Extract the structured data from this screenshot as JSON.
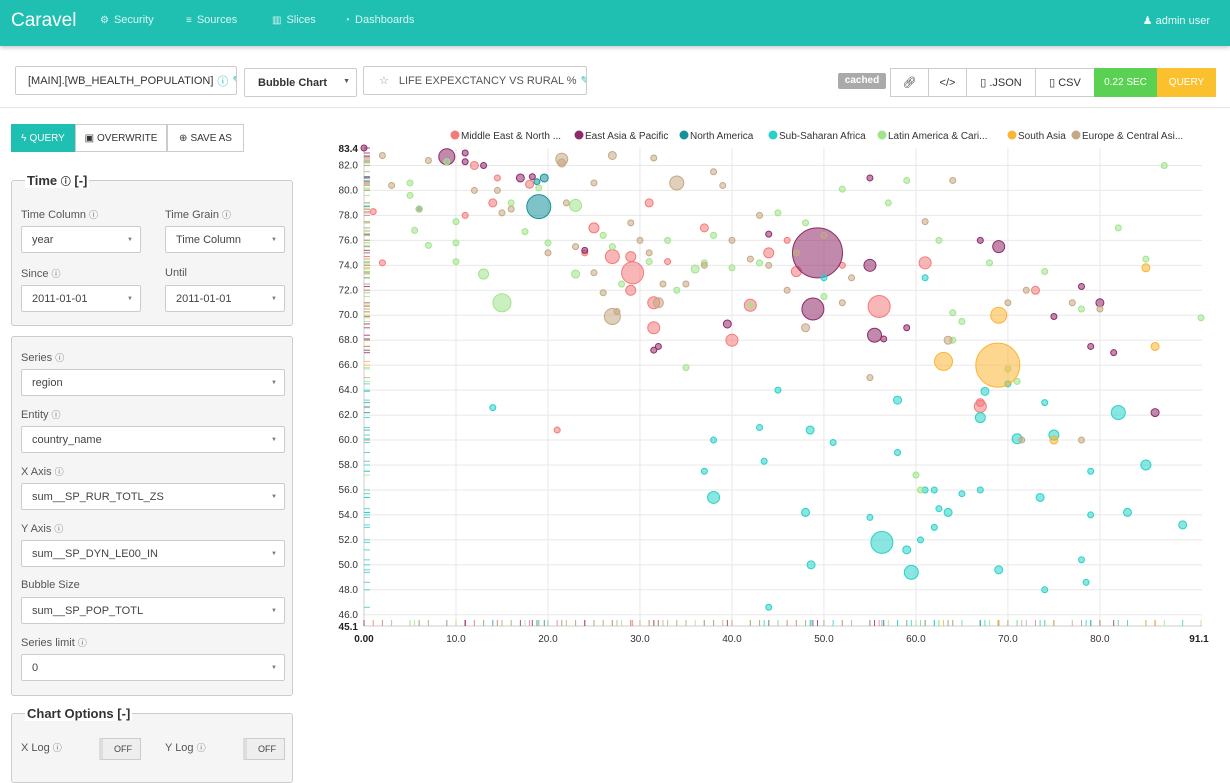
{
  "navbar": {
    "brand": "Caravel",
    "items": [
      {
        "label": "Security",
        "icon": "cogs-icon"
      },
      {
        "label": "Sources",
        "icon": "database-icon"
      },
      {
        "label": "Slices",
        "icon": "bar-chart-icon"
      },
      {
        "label": "Dashboards",
        "icon": "dashboard-icon"
      }
    ],
    "user": "admin user"
  },
  "toolbar": {
    "datasource": "[MAIN].[WB_HEALTH_POPULATION]",
    "viz_type": "Bubble Chart",
    "slice_title": "LIFE EXPEXCTANCY VS RURAL %",
    "cached": "cached",
    "json_label": ".JSON",
    "csv_label": "CSV",
    "timer": "0.22 SEC",
    "query_label": "QUERY"
  },
  "sidebar": {
    "query_label": "QUERY",
    "overwrite_label": "OVERWRITE",
    "saveas_label": "SAVE AS",
    "time_panel": {
      "title": "Time",
      "collapse": "[-]",
      "time_column_label": "Time Column",
      "time_column_value": "year",
      "time_grain_label": "Time Grain",
      "time_grain_value": "Time Column",
      "since_label": "Since",
      "since_value": "2011-01-01",
      "until_label": "Until",
      "until_value": "2011-01-01"
    },
    "fields": [
      {
        "label": "Series",
        "value": "region"
      },
      {
        "label": "Entity",
        "value": "country_name"
      },
      {
        "label": "X Axis",
        "value": "sum__SP_RUR_TOTL_ZS"
      },
      {
        "label": "Y Axis",
        "value": "sum__SP_DYN_LE00_IN"
      },
      {
        "label": "Bubble Size",
        "value": "sum__SP_POP_TOTL"
      },
      {
        "label": "Series limit",
        "value": "0"
      }
    ],
    "chart_options": {
      "title": "Chart Options",
      "collapse": "[-]",
      "xlog_label": "X Log",
      "xlog_value": "OFF",
      "ylog_label": "Y Log",
      "ylog_value": "OFF"
    }
  },
  "chart_data": {
    "type": "scatter",
    "x_min_label": "0.00",
    "x_max_label": "91.1",
    "y_min_label": "45.1",
    "y_max_label": "83.4",
    "xlim": [
      0,
      91.1
    ],
    "ylim": [
      45.1,
      83.4
    ],
    "x_ticks": [
      "10.0",
      "20.0",
      "30.0",
      "40.0",
      "50.0",
      "60.0",
      "70.0",
      "80.0"
    ],
    "y_ticks": [
      "46.0",
      "48.0",
      "50.0",
      "52.0",
      "54.0",
      "56.0",
      "58.0",
      "60.0",
      "62.0",
      "64.0",
      "66.0",
      "68.0",
      "70.0",
      "72.0",
      "74.0",
      "76.0",
      "78.0",
      "80.0",
      "82.0"
    ],
    "grid": true,
    "legend_position": "top",
    "series": [
      {
        "name": "Middle East & North ...",
        "color": "#f47a7a",
        "points": [
          [
            18,
            80.5
          ],
          [
            14,
            79
          ],
          [
            11,
            78
          ],
          [
            1,
            78.3
          ],
          [
            2,
            74.2
          ],
          [
            12,
            82
          ],
          [
            24,
            75
          ],
          [
            25,
            77
          ],
          [
            27,
            74.7
          ],
          [
            29,
            72
          ],
          [
            29,
            74.7
          ],
          [
            31.5,
            71
          ],
          [
            31.5,
            69
          ],
          [
            37,
            77
          ],
          [
            40,
            68
          ],
          [
            42,
            70.8
          ],
          [
            44,
            75
          ],
          [
            47,
            73.5
          ],
          [
            46,
            76
          ],
          [
            52,
            74
          ],
          [
            56,
            70.7
          ],
          [
            61,
            74.2
          ],
          [
            67,
            63
          ],
          [
            67,
            62.7
          ],
          [
            73,
            72
          ],
          [
            14.5,
            81
          ],
          [
            21,
            60.8
          ],
          [
            31,
            79
          ],
          [
            33,
            74.3
          ],
          [
            29.2,
            73.4
          ]
        ],
        "sizes": [
          4,
          4,
          3,
          3,
          3,
          4,
          3,
          5,
          7,
          5,
          5,
          6,
          6,
          4,
          6,
          6,
          5,
          5,
          3,
          3,
          11,
          6,
          4,
          6,
          4,
          3,
          3,
          4,
          3,
          11
        ]
      },
      {
        "name": "East Asia & Pacific",
        "color": "#8e2a68",
        "points": [
          [
            0,
            83.4
          ],
          [
            9,
            82.7
          ],
          [
            11,
            83
          ],
          [
            13,
            82
          ],
          [
            17,
            81
          ],
          [
            18.3,
            81.1
          ],
          [
            11,
            82.3
          ],
          [
            24,
            75.2
          ],
          [
            31.5,
            67.2
          ],
          [
            32,
            67.5
          ],
          [
            39.5,
            69.3
          ],
          [
            49.3,
            75
          ],
          [
            48.8,
            70.5
          ],
          [
            55,
            74
          ],
          [
            55.5,
            68.4
          ],
          [
            69,
            75.5
          ],
          [
            78,
            72.3
          ],
          [
            80,
            71
          ],
          [
            86,
            62.2
          ],
          [
            79,
            67.5
          ],
          [
            81.5,
            67
          ],
          [
            44,
            76.5
          ],
          [
            59,
            69
          ],
          [
            6,
            78.5
          ],
          [
            56.5,
            68.1
          ],
          [
            75,
            69.9
          ],
          [
            55,
            81
          ],
          [
            67,
            76
          ]
        ],
        "sizes": [
          3,
          8,
          3,
          3,
          4,
          3,
          3,
          3,
          3,
          3,
          4,
          25,
          11,
          6,
          7,
          6,
          3,
          4,
          4,
          3,
          3,
          3,
          3,
          3,
          3,
          3,
          3,
          3
        ]
      },
      {
        "name": "North America",
        "color": "#14919b",
        "points": [
          [
            19,
            78.7
          ],
          [
            19.6,
            81
          ],
          [
            18.8,
            80.7
          ]
        ],
        "sizes": [
          12,
          4,
          3
        ]
      },
      {
        "name": "Sub-Saharan Africa",
        "color": "#2ad1c9",
        "points": [
          [
            14,
            62.6
          ],
          [
            37,
            57.5
          ],
          [
            38,
            55.4
          ],
          [
            43,
            61
          ],
          [
            43.5,
            58.3
          ],
          [
            44,
            46.6
          ],
          [
            48,
            54.2
          ],
          [
            48.5,
            60.8
          ],
          [
            48.6,
            50
          ],
          [
            51,
            59.8
          ],
          [
            55,
            53.8
          ],
          [
            56.3,
            51.8
          ],
          [
            58,
            63.2
          ],
          [
            58,
            59
          ],
          [
            59,
            51.2
          ],
          [
            59.5,
            49.4
          ],
          [
            61,
            56
          ],
          [
            62,
            56
          ],
          [
            62,
            53
          ],
          [
            62.5,
            54.5
          ],
          [
            63.5,
            54.2
          ],
          [
            65,
            55.7
          ],
          [
            67,
            56
          ],
          [
            67,
            61.8
          ],
          [
            67.5,
            63.9
          ],
          [
            69,
            49.6
          ],
          [
            70,
            64.5
          ],
          [
            71,
            60.1
          ],
          [
            73.5,
            55.4
          ],
          [
            74,
            48
          ],
          [
            74,
            63
          ],
          [
            75,
            60.4
          ],
          [
            78,
            50.4
          ],
          [
            78.5,
            48.6
          ],
          [
            79,
            54
          ],
          [
            79,
            57.5
          ],
          [
            82,
            62.2
          ],
          [
            83,
            54.2
          ],
          [
            85,
            58
          ],
          [
            89,
            53.2
          ],
          [
            60.5,
            52
          ],
          [
            38,
            60
          ],
          [
            45,
            64
          ],
          [
            50,
            73
          ],
          [
            61,
            73
          ]
        ],
        "sizes": [
          3,
          3,
          6,
          3,
          3,
          3,
          4,
          4,
          4,
          3,
          3,
          11,
          4,
          3,
          4,
          7,
          3,
          3,
          3,
          3,
          4,
          3,
          3,
          5,
          4,
          4,
          3,
          5,
          4,
          3,
          3,
          5,
          3,
          3,
          3,
          3,
          7,
          4,
          5,
          4,
          3,
          3,
          3,
          3,
          3
        ]
      },
      {
        "name": "Latin America & Cari...",
        "color": "#a1e48a",
        "points": [
          [
            9,
            82.3
          ],
          [
            5,
            80.6
          ],
          [
            5,
            79.6
          ],
          [
            6,
            78.5
          ],
          [
            5.5,
            76.8
          ],
          [
            7,
            75.6
          ],
          [
            10,
            77.5
          ],
          [
            10,
            75.8
          ],
          [
            10,
            74.3
          ],
          [
            13,
            73.3
          ],
          [
            15,
            71
          ],
          [
            16,
            79
          ],
          [
            17.5,
            76.7
          ],
          [
            19,
            80.2
          ],
          [
            20,
            75.8
          ],
          [
            23,
            73.3
          ],
          [
            23,
            78.8
          ],
          [
            26,
            76.4
          ],
          [
            27,
            75.5
          ],
          [
            28,
            72.5
          ],
          [
            31,
            74.3
          ],
          [
            33,
            76
          ],
          [
            34,
            72
          ],
          [
            36,
            73.7
          ],
          [
            37,
            74.2
          ],
          [
            38,
            76.4
          ],
          [
            40,
            73.8
          ],
          [
            42,
            70.8
          ],
          [
            43,
            74.2
          ],
          [
            50,
            71.5
          ],
          [
            52,
            80.1
          ],
          [
            57,
            79
          ],
          [
            59,
            80.8
          ],
          [
            60,
            57.2
          ],
          [
            62.5,
            76
          ],
          [
            64,
            70.2
          ],
          [
            64,
            68
          ],
          [
            65,
            69.5
          ],
          [
            68,
            74.2
          ],
          [
            70,
            65.7
          ],
          [
            71,
            64.7
          ],
          [
            74,
            73.5
          ],
          [
            78,
            70.5
          ],
          [
            82,
            77
          ],
          [
            85,
            74.5
          ],
          [
            87,
            82
          ],
          [
            91,
            69.8
          ],
          [
            45,
            78.2
          ],
          [
            48,
            77.4
          ],
          [
            35,
            65.8
          ],
          [
            60.5,
            56
          ]
        ],
        "sizes": [
          3,
          3,
          3,
          3,
          3,
          3,
          3,
          3,
          3,
          5,
          9,
          3,
          3,
          3,
          3,
          4,
          6,
          3,
          3,
          3,
          3,
          3,
          3,
          4,
          3,
          3,
          3,
          3,
          3,
          3,
          3,
          3,
          3,
          3,
          3,
          3,
          3,
          3,
          3,
          3,
          3,
          3,
          3,
          3,
          3,
          3,
          3,
          3,
          3,
          3,
          3
        ]
      },
      {
        "name": "South Asia",
        "color": "#fbb534",
        "points": [
          [
            68.9,
            66
          ],
          [
            63,
            66.3
          ],
          [
            69,
            70
          ],
          [
            75,
            60
          ],
          [
            85,
            73.8
          ],
          [
            86,
            67.5
          ]
        ],
        "sizes": [
          22,
          9,
          8,
          4,
          4,
          4
        ]
      },
      {
        "name": "Europe & Central Asi...",
        "color": "#c6a884",
        "points": [
          [
            21.5,
            82.2
          ],
          [
            21.5,
            82.5
          ],
          [
            25,
            80.6
          ],
          [
            27,
            82.8
          ],
          [
            31.5,
            82.6
          ],
          [
            34,
            80.6
          ],
          [
            38,
            81.5
          ],
          [
            39,
            80.4
          ],
          [
            2,
            82.8
          ],
          [
            3,
            80.4
          ],
          [
            7,
            82.4
          ],
          [
            12,
            80
          ],
          [
            14.5,
            80
          ],
          [
            15,
            78.2
          ],
          [
            16,
            78.5
          ],
          [
            20,
            75
          ],
          [
            22,
            79
          ],
          [
            23,
            75.5
          ],
          [
            25,
            73.4
          ],
          [
            26,
            71.8
          ],
          [
            27,
            69.9
          ],
          [
            27.5,
            70.3
          ],
          [
            29,
            77.4
          ],
          [
            30,
            76
          ],
          [
            31,
            75
          ],
          [
            32,
            71
          ],
          [
            32.5,
            72.5
          ],
          [
            35,
            72.5
          ],
          [
            37,
            74
          ],
          [
            40,
            76
          ],
          [
            42,
            74.5
          ],
          [
            44,
            74
          ],
          [
            46,
            72
          ],
          [
            47,
            75
          ],
          [
            50,
            76.4
          ],
          [
            52,
            71
          ],
          [
            53,
            73
          ],
          [
            61,
            77.5
          ],
          [
            63.5,
            68
          ],
          [
            70,
            71
          ],
          [
            72,
            72
          ],
          [
            77,
            71
          ],
          [
            80,
            70.5
          ],
          [
            78,
            60
          ],
          [
            71.5,
            60
          ],
          [
            64,
            80.8
          ],
          [
            55,
            65
          ],
          [
            43,
            78
          ],
          [
            48,
            69
          ]
        ],
        "sizes": [
          4,
          6,
          3,
          4,
          3,
          7,
          3,
          3,
          3,
          3,
          3,
          3,
          3,
          3,
          3,
          3,
          3,
          3,
          3,
          3,
          8,
          3,
          3,
          3,
          3,
          5,
          3,
          3,
          3,
          3,
          3,
          3,
          3,
          3,
          3,
          3,
          3,
          3,
          4,
          3,
          3,
          3,
          3,
          3,
          3,
          3,
          3,
          3,
          4
        ]
      }
    ]
  }
}
